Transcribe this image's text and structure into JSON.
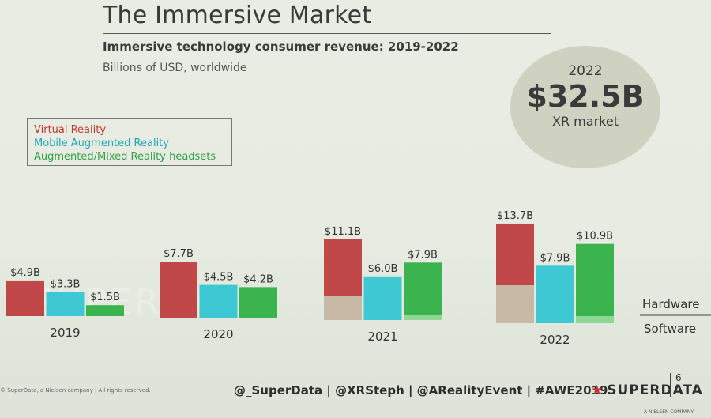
{
  "header": {
    "title": "The Immersive Market",
    "subtitle": "Immersive technology consumer revenue: 2019-2022",
    "subtitle2": "Billions of USD, worldwide"
  },
  "highlight": {
    "year": "2022",
    "value": "$32.5B",
    "label": "XR market"
  },
  "legend": {
    "items": [
      {
        "label": "Virtual Reality",
        "color": "#c0392b"
      },
      {
        "label": "Mobile Augmented Reality",
        "color": "#1aa9b8"
      },
      {
        "label": "Augmented/Mixed Reality headsets",
        "color": "#2e9f46"
      }
    ]
  },
  "colors": {
    "vr_hw": "#c04848",
    "vr_sw": "#c8b9a6",
    "mar": "#3ec8d4",
    "ar_hw": "#3bb450",
    "ar_sw": "#8fd893"
  },
  "watermark": "SUPERDATA",
  "chart_data": {
    "type": "bar",
    "categories": [
      "2019",
      "2020",
      "2021",
      "2022"
    ],
    "series": [
      {
        "name": "Virtual Reality",
        "values": [
          4.9,
          7.7,
          11.1,
          13.7
        ],
        "labels": [
          "$4.9B",
          "$7.7B",
          "$11.1B",
          "$13.7B"
        ]
      },
      {
        "name": "Mobile Augmented Reality",
        "values": [
          3.3,
          4.5,
          6.0,
          7.9
        ],
        "labels": [
          "$3.3B",
          "$4.5B",
          "$6.0B",
          "$7.9B"
        ]
      },
      {
        "name": "Augmented/Mixed Reality headsets",
        "values": [
          1.5,
          4.2,
          7.9,
          10.9
        ],
        "labels": [
          "$1.5B",
          "$4.2B",
          "$7.9B",
          "$10.9B"
        ]
      }
    ],
    "vr_software_share": [
      0.0,
      0.0,
      0.3,
      0.38
    ],
    "split_labels": {
      "upper": "Hardware",
      "lower": "Software"
    }
  },
  "footer": {
    "copyright": "© SuperData, a Nielsen company | All rights reserved.",
    "handles": "@_SuperData  |  @XRSteph  |  @ARealityEvent  |  #AWE2019",
    "brand": "SUPERDATA",
    "brand_sub": "A NIELSEN COMPANY",
    "page": "6"
  }
}
